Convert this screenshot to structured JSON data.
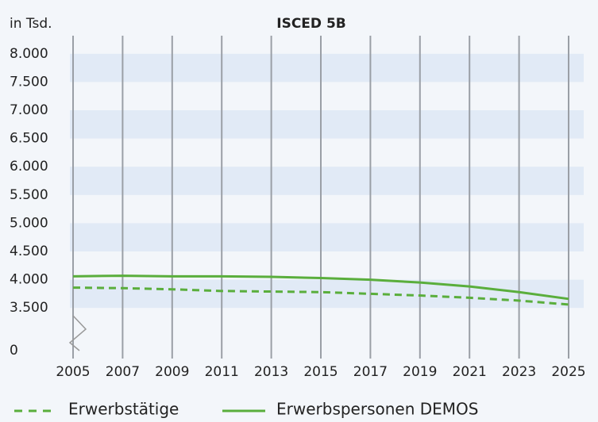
{
  "chart_data": {
    "type": "line",
    "title": "ISCED 5B",
    "y_axis_label": "in Tsd.",
    "x": [
      2005,
      2007,
      2009,
      2011,
      2013,
      2015,
      2017,
      2019,
      2021,
      2023,
      2025
    ],
    "series": [
      {
        "name": "Erwerbstätige",
        "color": "#5aae3c",
        "dashed": true,
        "values": [
          3860,
          3850,
          3830,
          3800,
          3790,
          3780,
          3750,
          3720,
          3680,
          3630,
          3560
        ]
      },
      {
        "name": "Erwerbspersonen DEMOS",
        "color": "#5aae3c",
        "dashed": false,
        "values": [
          4060,
          4070,
          4060,
          4060,
          4050,
          4030,
          4000,
          3950,
          3880,
          3780,
          3660
        ]
      }
    ],
    "xlim": [
      2005,
      2025
    ],
    "xticks": [
      2005,
      2007,
      2009,
      2011,
      2013,
      2015,
      2017,
      2019,
      2021,
      2023,
      2025
    ],
    "ylim": [
      3250,
      8250
    ],
    "yticks": [
      0,
      {
        "value": 3500,
        "label": "3.500"
      },
      {
        "value": 4000,
        "label": "4.000"
      },
      {
        "value": 4500,
        "label": "4.500"
      },
      {
        "value": 5000,
        "label": "5.000"
      },
      {
        "value": 5500,
        "label": "5.500"
      },
      {
        "value": 6000,
        "label": "6.000"
      },
      {
        "value": 6500,
        "label": "6.500"
      },
      {
        "value": 7000,
        "label": "7.000"
      },
      {
        "value": 7500,
        "label": "7.500"
      },
      {
        "value": 8000,
        "label": "8.000"
      }
    ],
    "axis_break": true,
    "grid": true,
    "legend": "bottom"
  }
}
